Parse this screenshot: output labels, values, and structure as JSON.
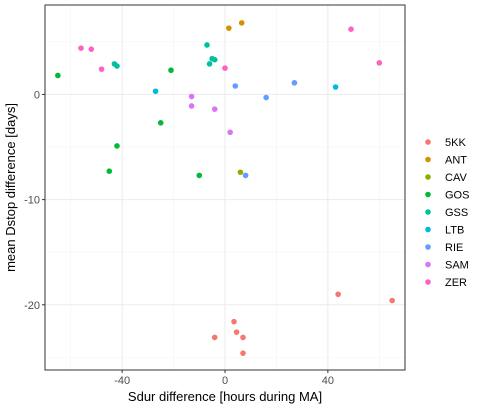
{
  "chart_data": {
    "type": "scatter",
    "title": "",
    "xlabel": "Sdur difference [hours during MA]",
    "ylabel": "mean Dstop difference [days]",
    "xlim": [
      -70,
      70
    ],
    "ylim": [
      -26.2,
      8.5
    ],
    "x_ticks": [
      -40,
      0,
      40
    ],
    "y_ticks": [
      0,
      -10,
      -20
    ],
    "grid": true,
    "legend_position": "right",
    "series": [
      {
        "name": "5KK",
        "color": "#F8766D",
        "points": [
          [
            -4,
            -23.1
          ],
          [
            3.5,
            -21.6
          ],
          [
            4.5,
            -22.6
          ],
          [
            7,
            -23.1
          ],
          [
            7,
            -24.6
          ],
          [
            44,
            -19.0
          ],
          [
            65,
            -19.6
          ]
        ]
      },
      {
        "name": "ANT",
        "color": "#D39200",
        "points": [
          [
            1.5,
            6.3
          ],
          [
            6.5,
            6.8
          ]
        ]
      },
      {
        "name": "CAV",
        "color": "#93AA00",
        "points": [
          [
            6,
            -7.4
          ]
        ]
      },
      {
        "name": "GOS",
        "color": "#00BA38",
        "points": [
          [
            -65,
            1.8
          ],
          [
            -42,
            -4.9
          ],
          [
            -45,
            -7.3
          ],
          [
            -21,
            2.3
          ],
          [
            -25,
            -2.7
          ],
          [
            -10,
            -7.7
          ]
        ]
      },
      {
        "name": "GSS",
        "color": "#00C19F",
        "points": [
          [
            -43,
            2.9
          ],
          [
            -42,
            2.7
          ],
          [
            -7,
            4.7
          ],
          [
            -5,
            3.4
          ],
          [
            -4,
            3.3
          ],
          [
            -6,
            2.9
          ]
        ]
      },
      {
        "name": "LTB",
        "color": "#00B9E3",
        "points": [
          [
            -27,
            0.3
          ],
          [
            43,
            0.7
          ]
        ]
      },
      {
        "name": "RIE",
        "color": "#619CFF",
        "points": [
          [
            4,
            0.8
          ],
          [
            16,
            -0.3
          ],
          [
            27,
            1.1
          ],
          [
            8,
            -7.7
          ]
        ]
      },
      {
        "name": "SAM",
        "color": "#DB72FB",
        "points": [
          [
            -13,
            -0.2
          ],
          [
            -13,
            -1.1
          ],
          [
            -4,
            -1.4
          ],
          [
            2,
            -3.6
          ]
        ]
      },
      {
        "name": "ZER",
        "color": "#FF61C3",
        "points": [
          [
            -56,
            4.4
          ],
          [
            -52,
            4.3
          ],
          [
            -48,
            2.4
          ],
          [
            0,
            2.5
          ],
          [
            49,
            6.2
          ],
          [
            60,
            3.0
          ]
        ]
      }
    ]
  }
}
